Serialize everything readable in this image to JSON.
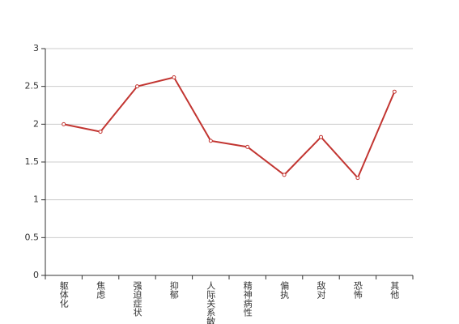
{
  "chart_data": {
    "type": "line",
    "categories": [
      "躯体化",
      "焦虑",
      "强迫症状",
      "抑郁",
      "人际关系敏感",
      "精神病性",
      "偏执",
      "敌对",
      "恐怖",
      "其他"
    ],
    "series": [
      {
        "color": "#c23531",
        "values": [
          2.0,
          1.9,
          2.5,
          2.62,
          1.78,
          1.7,
          1.33,
          1.83,
          1.29,
          2.43
        ]
      }
    ],
    "ylim": [
      0,
      3
    ],
    "yticks": [
      0,
      0.5,
      1,
      1.5,
      2,
      2.5,
      3
    ],
    "grid": true
  }
}
